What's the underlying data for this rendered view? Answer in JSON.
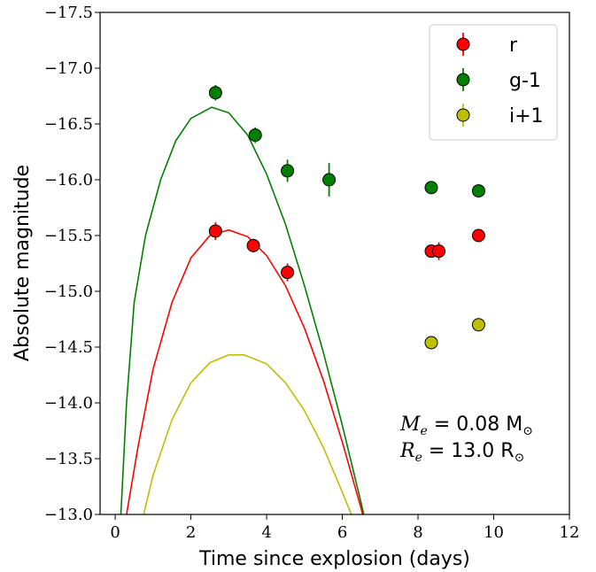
{
  "chart_data": {
    "type": "scatter",
    "xlabel": "Time since explosion (days)",
    "ylabel": "Absolute magnitude",
    "xlim": [
      -0.4,
      12
    ],
    "ylim": [
      -13.0,
      -17.5
    ],
    "y_inverted": true,
    "xticks": [
      0,
      2,
      4,
      6,
      8,
      10,
      12
    ],
    "yticks": [
      -13.0,
      -13.5,
      -14.0,
      -14.5,
      -15.0,
      -15.5,
      -16.0,
      -16.5,
      -17.0,
      -17.5
    ],
    "x_tick_labels": [
      "0",
      "2",
      "4",
      "6",
      "8",
      "10",
      "12"
    ],
    "y_tick_labels": [
      "−13.0",
      "−13.5",
      "−14.0",
      "−14.5",
      "−15.0",
      "−15.5",
      "−16.0",
      "−16.5",
      "−17.0",
      "−17.5"
    ],
    "grid": false,
    "legend_position": "top-right",
    "series": [
      {
        "name": "r",
        "color": "#ff0000",
        "points": [
          {
            "x": 2.65,
            "y": -15.54,
            "err": 0.08
          },
          {
            "x": 3.65,
            "y": -15.41,
            "err": 0.06
          },
          {
            "x": 4.55,
            "y": -15.17,
            "err": 0.08
          },
          {
            "x": 8.35,
            "y": -15.36,
            "err": 0.0
          },
          {
            "x": 8.55,
            "y": -15.36,
            "err": 0.08
          },
          {
            "x": 9.6,
            "y": -15.5,
            "err": 0.0
          }
        ],
        "curve": {
          "peak_x": 3.0,
          "peak_y": -15.55,
          "model_points": [
            [
              0.3,
              -13.0
            ],
            [
              0.6,
              -13.6
            ],
            [
              1.0,
              -14.3
            ],
            [
              1.5,
              -14.9
            ],
            [
              2.0,
              -15.3
            ],
            [
              2.5,
              -15.5
            ],
            [
              3.0,
              -15.55
            ],
            [
              3.5,
              -15.49
            ],
            [
              4.0,
              -15.32
            ],
            [
              4.5,
              -15.05
            ],
            [
              5.0,
              -14.67
            ],
            [
              5.5,
              -14.2
            ],
            [
              6.0,
              -13.65
            ],
            [
              6.5,
              -13.05
            ],
            [
              6.9,
              -12.5
            ]
          ]
        }
      },
      {
        "name": "g-1",
        "color": "#008000",
        "points": [
          {
            "x": 2.65,
            "y": -16.78,
            "err": 0.07
          },
          {
            "x": 3.7,
            "y": -16.4,
            "err": 0.07
          },
          {
            "x": 4.55,
            "y": -16.08,
            "err": 0.1
          },
          {
            "x": 5.65,
            "y": -16.0,
            "err": 0.15
          },
          {
            "x": 8.35,
            "y": -15.93,
            "err": 0.0
          },
          {
            "x": 9.6,
            "y": -15.9,
            "err": 0.0
          }
        ],
        "curve": {
          "peak_x": 2.55,
          "peak_y": -16.65,
          "model_points": [
            [
              0.15,
              -13.0
            ],
            [
              0.3,
              -14.0
            ],
            [
              0.5,
              -14.9
            ],
            [
              0.8,
              -15.5
            ],
            [
              1.2,
              -16.0
            ],
            [
              1.6,
              -16.35
            ],
            [
              2.0,
              -16.55
            ],
            [
              2.55,
              -16.65
            ],
            [
              3.0,
              -16.6
            ],
            [
              3.5,
              -16.4
            ],
            [
              4.0,
              -16.05
            ],
            [
              4.5,
              -15.6
            ],
            [
              5.0,
              -15.05
            ],
            [
              5.5,
              -14.45
            ],
            [
              6.0,
              -13.8
            ],
            [
              6.5,
              -13.1
            ],
            [
              6.9,
              -12.5
            ]
          ]
        }
      },
      {
        "name": "i+1",
        "color": "#bfbf00",
        "points": [
          {
            "x": 8.35,
            "y": -14.54,
            "err": 0.0
          },
          {
            "x": 9.6,
            "y": -14.7,
            "err": 0.0
          }
        ],
        "curve": {
          "peak_x": 3.4,
          "peak_y": -14.43,
          "model_points": [
            [
              0.75,
              -13.0
            ],
            [
              1.0,
              -13.35
            ],
            [
              1.5,
              -13.85
            ],
            [
              2.0,
              -14.18
            ],
            [
              2.5,
              -14.36
            ],
            [
              3.0,
              -14.43
            ],
            [
              3.4,
              -14.43
            ],
            [
              4.0,
              -14.35
            ],
            [
              4.5,
              -14.18
            ],
            [
              5.0,
              -13.93
            ],
            [
              5.5,
              -13.6
            ],
            [
              6.0,
              -13.2
            ],
            [
              6.3,
              -12.95
            ],
            [
              6.5,
              -12.75
            ]
          ]
        }
      }
    ],
    "annotation": {
      "line1_symbol": "M",
      "line1_sub": "e",
      "line1_value": " = 0.08 M",
      "line2_symbol": "R",
      "line2_sub": "e",
      "line2_value": " = 13.0 R",
      "sun_symbol": "⊙"
    }
  }
}
